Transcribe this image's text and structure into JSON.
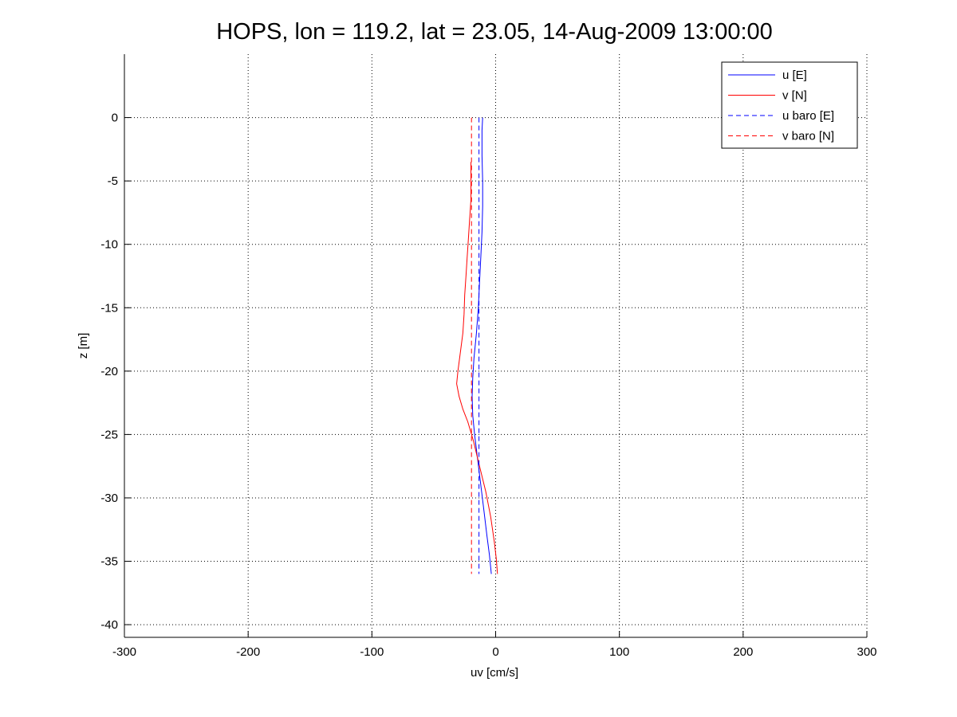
{
  "chart_data": {
    "type": "line",
    "title": "HOPS, lon = 119.2, lat = 23.05, 14-Aug-2009 13:00:00",
    "xlabel": "uv [cm/s]",
    "ylabel": "z [m]",
    "xlim": [
      -300,
      300
    ],
    "ylim": [
      -41,
      5
    ],
    "xticks": [
      -300,
      -200,
      -100,
      0,
      100,
      200,
      300
    ],
    "yticks": [
      0,
      -5,
      -10,
      -15,
      -20,
      -25,
      -30,
      -35,
      -40
    ],
    "xtick_labels": [
      "-300",
      "-200",
      "-100",
      "0",
      "100",
      "200",
      "300"
    ],
    "ytick_labels": [
      "0",
      "-5",
      "-10",
      "-15",
      "-20",
      "-25",
      "-30",
      "-35",
      "-40"
    ],
    "grid": true,
    "legend_position": "top-right",
    "series": [
      {
        "name": "u [E]",
        "color": "#0000ff",
        "dash": "solid",
        "points": [
          [
            -10.5,
            0
          ],
          [
            -11.0,
            -1
          ],
          [
            -11.0,
            -3
          ],
          [
            -10.5,
            -5
          ],
          [
            -10.5,
            -7
          ],
          [
            -11.0,
            -9
          ],
          [
            -12.0,
            -11
          ],
          [
            -13.0,
            -13
          ],
          [
            -14.0,
            -15
          ],
          [
            -15.5,
            -17
          ],
          [
            -17.5,
            -19
          ],
          [
            -18.5,
            -20.5
          ],
          [
            -19.0,
            -22
          ],
          [
            -18.5,
            -23.5
          ],
          [
            -17.0,
            -25
          ],
          [
            -14.5,
            -27
          ],
          [
            -12.0,
            -29
          ],
          [
            -9.5,
            -31
          ],
          [
            -7.0,
            -33
          ],
          [
            -5.0,
            -34.5
          ],
          [
            -3.5,
            -36
          ]
        ]
      },
      {
        "name": "v [N]",
        "color": "#ff0000",
        "dash": "solid",
        "points": [
          [
            -20.0,
            -3.5
          ],
          [
            -20.0,
            -5
          ],
          [
            -20.0,
            -6.5
          ],
          [
            -21.0,
            -8
          ],
          [
            -22.0,
            -9.5
          ],
          [
            -23.0,
            -11
          ],
          [
            -24.0,
            -12.5
          ],
          [
            -25.0,
            -14
          ],
          [
            -25.5,
            -15.5
          ],
          [
            -26.5,
            -17
          ],
          [
            -28.5,
            -18.5
          ],
          [
            -30.5,
            -20
          ],
          [
            -31.5,
            -21
          ],
          [
            -29.5,
            -22
          ],
          [
            -26.5,
            -23
          ],
          [
            -22.5,
            -24
          ],
          [
            -18.0,
            -25.5
          ],
          [
            -13.0,
            -27.5
          ],
          [
            -8.0,
            -29.5
          ],
          [
            -4.0,
            -31.5
          ],
          [
            -1.0,
            -33.5
          ],
          [
            0.5,
            -34.8
          ],
          [
            1.5,
            -36
          ]
        ]
      },
      {
        "name": "u baro [E]",
        "color": "#0000ff",
        "dash": "dashed",
        "points": [
          [
            -13.5,
            0
          ],
          [
            -13.5,
            -36
          ]
        ]
      },
      {
        "name": "v baro [N]",
        "color": "#ff0000",
        "dash": "dashed",
        "points": [
          [
            -19.5,
            0
          ],
          [
            -19.5,
            -36
          ]
        ]
      }
    ]
  }
}
